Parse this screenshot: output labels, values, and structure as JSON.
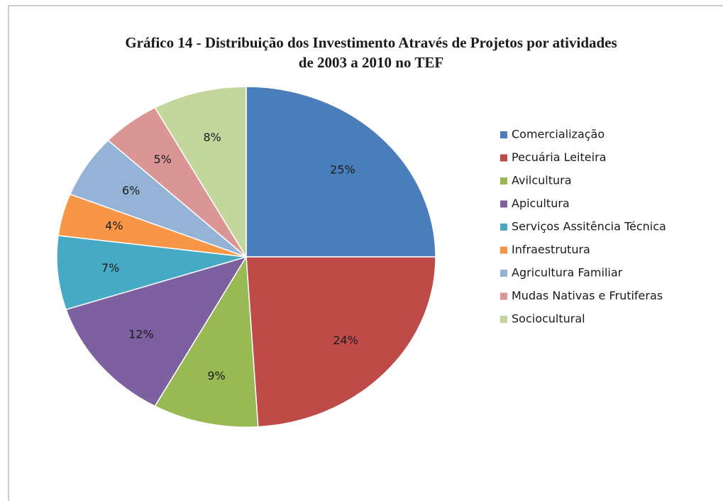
{
  "chart_data": {
    "type": "pie",
    "title": [
      "Gráfico 14 - Distribuição dos Investimento Através de Projetos por atividades",
      "de 2003 a 2010 no TEF"
    ],
    "categories": [
      "Comercialização",
      "Pecuária Leiteira",
      "Avilcultura",
      "Apicultura",
      "Serviços Assitência Técnica",
      "Infraestrutura",
      "Agricultura Familiar",
      "Mudas Nativas e Frutiferas",
      "Sociocultural"
    ],
    "values": [
      25,
      24,
      9,
      12,
      7,
      4,
      6,
      5,
      8
    ],
    "value_labels": [
      "25%",
      "24%",
      "9%",
      "12%",
      "7%",
      "4%",
      "6%",
      "5%",
      "8%"
    ],
    "colors": [
      "#4a7ebb",
      "#be4b48",
      "#98b954",
      "#7d60a0",
      "#46aac5",
      "#f79646",
      "#95b3d7",
      "#d99694",
      "#c3d69b"
    ],
    "legend": "right"
  }
}
